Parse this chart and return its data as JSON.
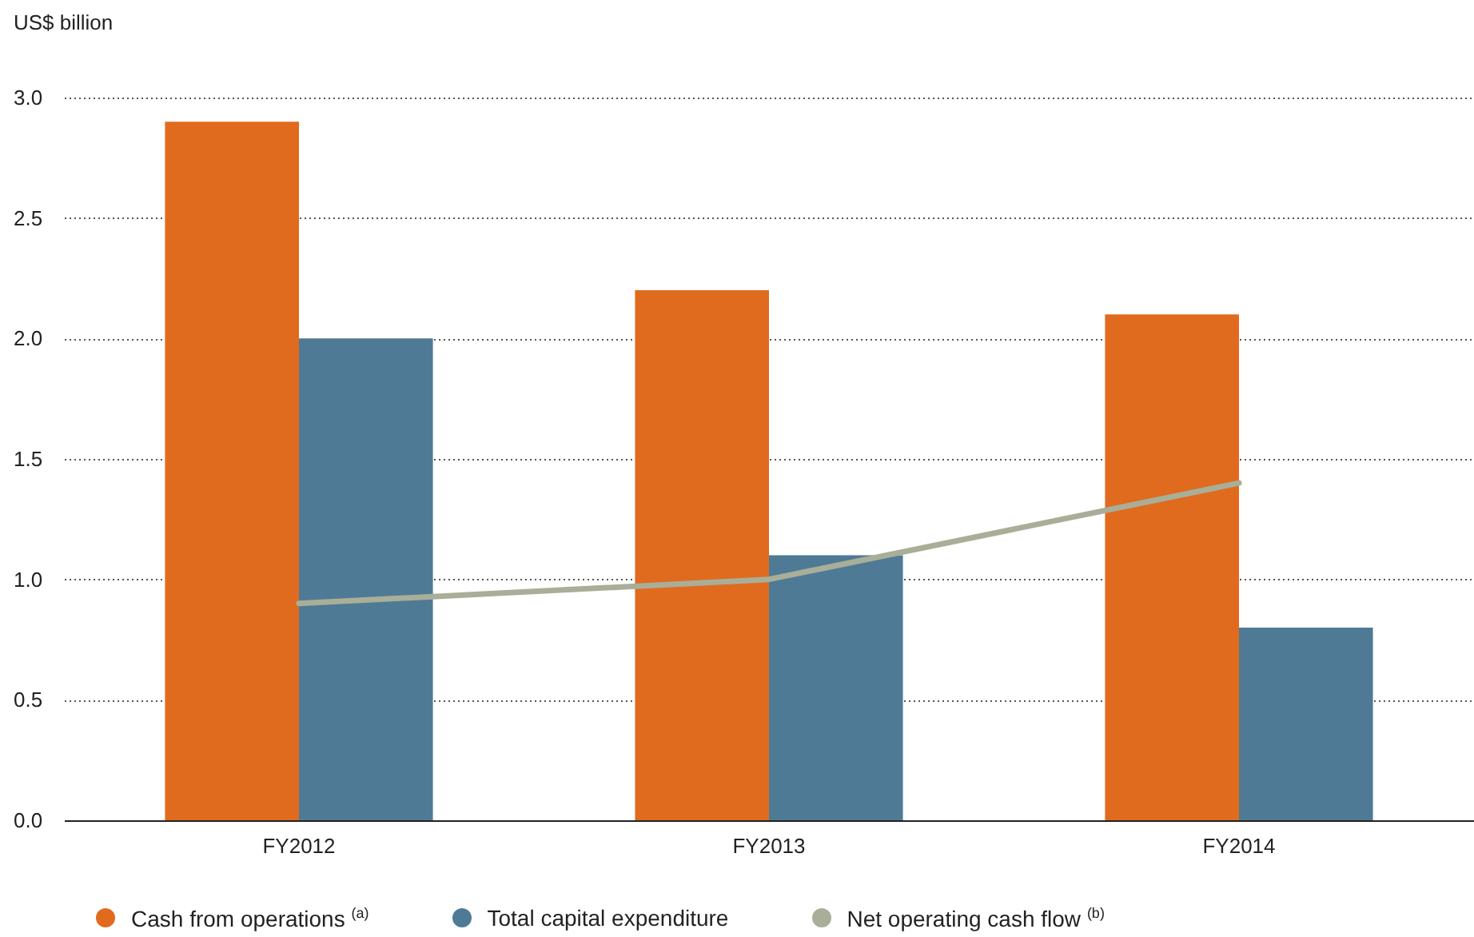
{
  "chart_data": {
    "type": "bar",
    "ylabel": "US$ billion",
    "categories": [
      "FY2012",
      "FY2013",
      "FY2014"
    ],
    "series": [
      {
        "name": "Cash from operations $^{(a)}$",
        "color": "#e06b1e",
        "values": [
          2.9,
          2.2,
          2.1
        ]
      },
      {
        "name": "Total capital expenditure",
        "color": "#4f7a96",
        "values": [
          2.0,
          1.1,
          0.8
        ]
      },
      {
        "name": "Net operating cash flow $^{(b)}$",
        "type": "line",
        "color": "#a9ae98",
        "values": [
          0.9,
          1.0,
          1.4
        ]
      }
    ],
    "ylim": [
      0,
      3
    ],
    "yticks": [
      {
        "value": 0,
        "label": "0.0"
      },
      {
        "value": 0.5,
        "label": "0.5"
      },
      {
        "value": 1,
        "label": "1.0"
      },
      {
        "value": 1.5,
        "label": "1.5"
      },
      {
        "value": 2,
        "label": "2.0"
      },
      {
        "value": 2.5,
        "label": "2.5"
      },
      {
        "value": 3,
        "label": "3.0"
      }
    ],
    "grid": "y",
    "legend": "bottom"
  }
}
